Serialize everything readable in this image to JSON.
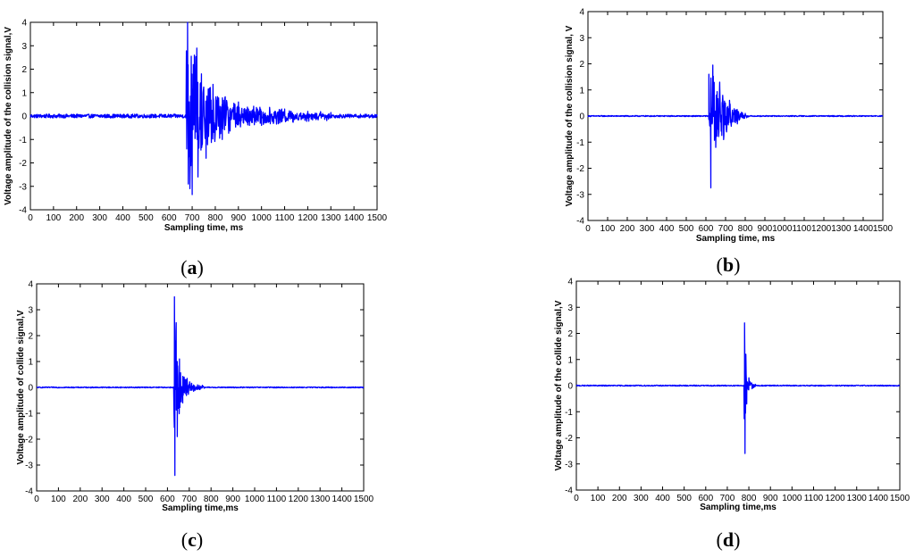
{
  "chart_data": [
    {
      "type": "line",
      "panel_label": "a",
      "xlabel": "Sampling time, ms",
      "ylabel": "Voltage amplitude of the collision signal,V",
      "xlim": [
        0,
        1500
      ],
      "ylim": [
        -4,
        4
      ],
      "x_ticks": [
        "0",
        "100",
        "200",
        "300",
        "400",
        "500",
        "600",
        "700",
        "800",
        "900",
        "1000",
        "1100",
        "1200",
        "1300",
        "1400",
        "1500"
      ],
      "y_ticks": [
        "-4",
        "-3",
        "-2",
        "-1",
        "0",
        "1",
        "2",
        "3",
        "4"
      ],
      "grid": false,
      "color": "#0000ff",
      "series": [
        {
          "baseline_noise": 0.08,
          "onset_ms": 675,
          "peaks": [
            [
              680,
              4.0
            ],
            [
              683,
              -2.9
            ],
            [
              690,
              -3.1
            ],
            [
              700,
              -3.35
            ],
            [
              720,
              2.9
            ],
            [
              725,
              -2.6
            ],
            [
              740,
              1.8
            ],
            [
              760,
              -1.8
            ],
            [
              790,
              1.35
            ],
            [
              830,
              -1.0
            ],
            [
              900,
              0.6
            ],
            [
              1000,
              -0.4
            ],
            [
              1100,
              0.3
            ],
            [
              1200,
              0.2
            ],
            [
              1300,
              0.15
            ]
          ],
          "decay_end_ms": 1300,
          "final_level": 0.0
        }
      ]
    },
    {
      "type": "line",
      "panel_label": "b",
      "xlabel": "Sampling time, ms",
      "ylabel": "Voltage amplitude of the collision signal, V",
      "xlim": [
        0,
        1500
      ],
      "ylim": [
        -4,
        4
      ],
      "x_ticks": [
        "0",
        "100",
        "200",
        "300",
        "400",
        "500",
        "600",
        "700",
        "800",
        "9001000110012001300",
        "1400",
        "1500"
      ],
      "y_ticks": [
        "-4",
        "-3",
        "-2",
        "-1",
        "0",
        "1",
        "2",
        "3",
        "4"
      ],
      "grid": false,
      "color": "#0000ff",
      "series": [
        {
          "baseline_noise": 0.02,
          "onset_ms": 615,
          "peaks": [
            [
              615,
              1.6
            ],
            [
              625,
              -2.75
            ],
            [
              635,
              1.95
            ],
            [
              650,
              -1.2
            ],
            [
              670,
              1.3
            ],
            [
              690,
              -0.9
            ],
            [
              720,
              0.6
            ],
            [
              760,
              -0.3
            ],
            [
              800,
              0.1
            ]
          ],
          "decay_end_ms": 820,
          "final_level": 0.0
        }
      ]
    },
    {
      "type": "line",
      "panel_label": "c",
      "xlabel": "Sampling time,ms",
      "ylabel": "Voltage amplitude of collide signal,V",
      "xlim": [
        0,
        1500
      ],
      "ylim": [
        -4,
        4
      ],
      "x_ticks": [
        "0",
        "100",
        "200",
        "300",
        "400",
        "500",
        "600",
        "700",
        "800",
        "900",
        "1000",
        "1100",
        "1200",
        "1300",
        "1400",
        "1500"
      ],
      "y_ticks": [
        "-4",
        "-3",
        "-2",
        "-1",
        "0",
        "1",
        "2",
        "3",
        "4"
      ],
      "grid": false,
      "color": "#0000ff",
      "series": [
        {
          "baseline_noise": 0.02,
          "onset_ms": 630,
          "peaks": [
            [
              632,
              3.5
            ],
            [
              634,
              -3.4
            ],
            [
              640,
              2.5
            ],
            [
              645,
              -1.9
            ],
            [
              655,
              1.1
            ],
            [
              670,
              -0.6
            ],
            [
              690,
              0.35
            ],
            [
              720,
              -0.15
            ],
            [
              760,
              0.08
            ]
          ],
          "decay_end_ms": 780,
          "final_level": 0.0
        }
      ]
    },
    {
      "type": "line",
      "panel_label": "d",
      "xlabel": "Sampling time,ms",
      "ylabel": "Voltage amplitude of the collide signal,V",
      "xlim": [
        0,
        1500
      ],
      "ylim": [
        -4,
        4
      ],
      "x_ticks": [
        "0",
        "100",
        "200",
        "300",
        "400",
        "500",
        "600",
        "700",
        "800",
        "900",
        "1000",
        "1100",
        "1200",
        "1300",
        "1400",
        "1500"
      ],
      "y_ticks": [
        "-4",
        "-3",
        "-2",
        "-1",
        "0",
        "1",
        "2",
        "3",
        "4"
      ],
      "grid": false,
      "color": "#0000ff",
      "series": [
        {
          "baseline_noise": 0.02,
          "onset_ms": 778,
          "peaks": [
            [
              780,
              2.4
            ],
            [
              782,
              -2.6
            ],
            [
              786,
              1.2
            ],
            [
              790,
              -0.7
            ],
            [
              800,
              0.3
            ],
            [
              815,
              -0.12
            ],
            [
              830,
              0.05
            ]
          ],
          "decay_end_ms": 840,
          "final_level": 0.0
        }
      ]
    }
  ]
}
